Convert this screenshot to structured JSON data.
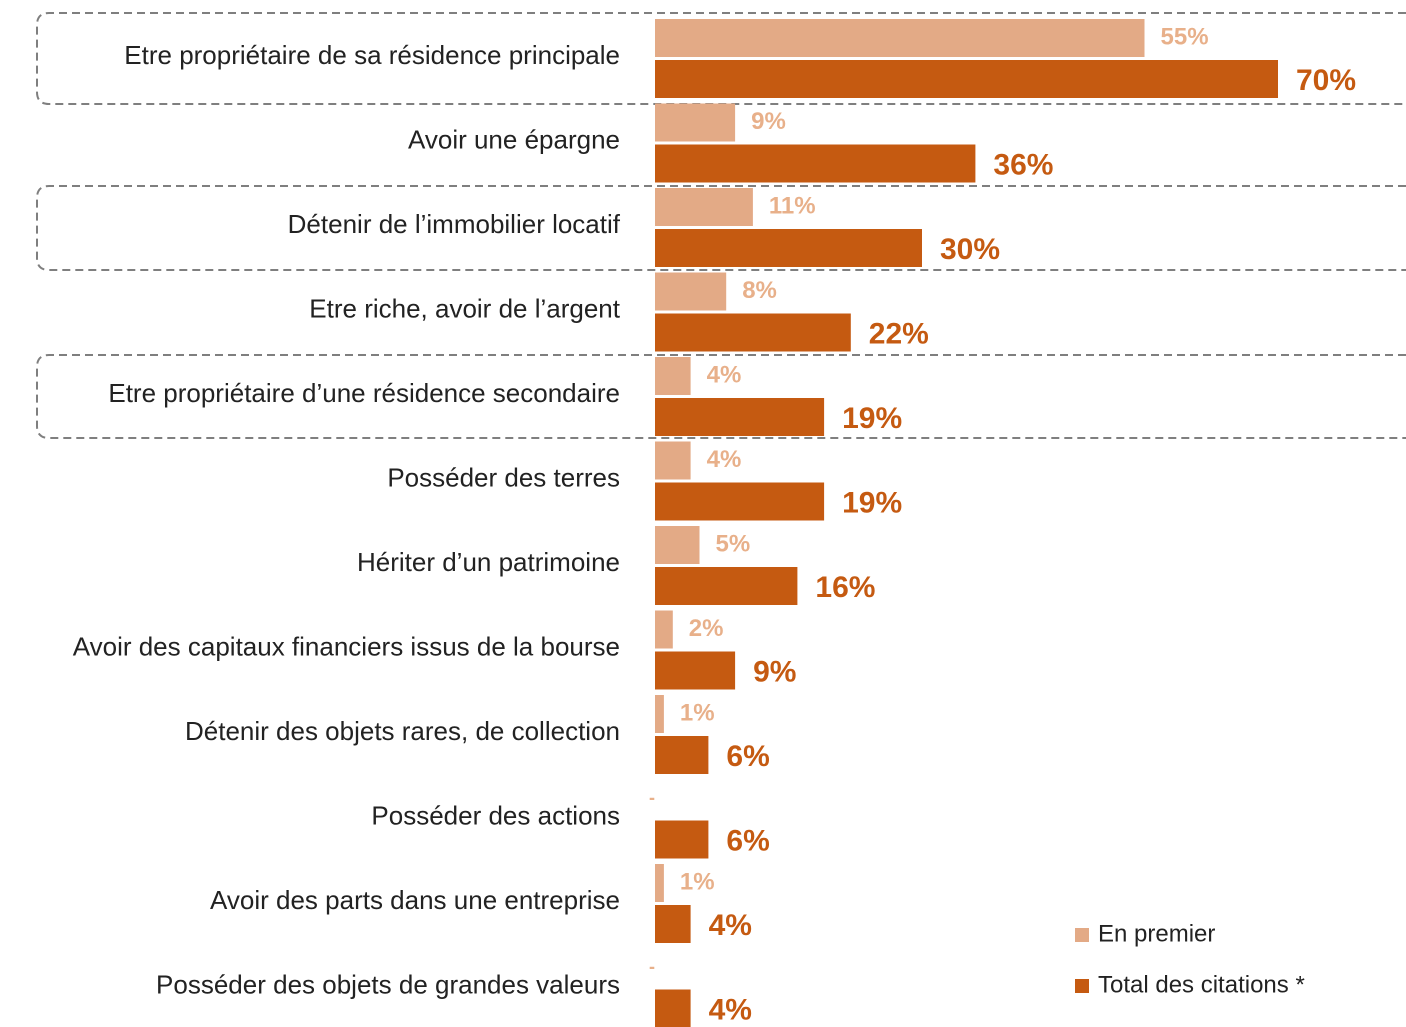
{
  "chart_data": {
    "type": "bar",
    "orientation": "horizontal",
    "categories": [
      "Etre propriétaire de sa résidence principale",
      "Avoir une épargne",
      "Détenir de l’immobilier locatif",
      "Etre riche, avoir de l’argent",
      "Etre propriétaire d’une résidence secondaire",
      "Posséder des terres",
      "Hériter d’un patrimoine",
      "Avoir des capitaux financiers issus de la bourse",
      "Détenir des objets rares, de collection",
      "Posséder des actions",
      "Avoir des parts dans une entreprise",
      "Posséder des objets de grandes valeurs"
    ],
    "series": [
      {
        "name": "En premier",
        "color": "#e3aa86",
        "label_color": "#e8b08a",
        "values": [
          55,
          9,
          11,
          8,
          4,
          4,
          5,
          2,
          1,
          null,
          1,
          null
        ],
        "value_labels": [
          "55%",
          "9%",
          "11%",
          "8%",
          "4%",
          "4%",
          "5%",
          "2%",
          "1%",
          "-",
          "1%",
          "-"
        ]
      },
      {
        "name": "Total des citations *",
        "color": "#c55a11",
        "label_color": "#c55a11",
        "values": [
          70,
          36,
          30,
          22,
          19,
          19,
          16,
          9,
          6,
          6,
          4,
          4
        ],
        "value_labels": [
          "70%",
          "36%",
          "30%",
          "22%",
          "19%",
          "19%",
          "16%",
          "9%",
          "6%",
          "6%",
          "4%",
          "4%"
        ]
      }
    ],
    "legend": "bottom-right"
  }
}
